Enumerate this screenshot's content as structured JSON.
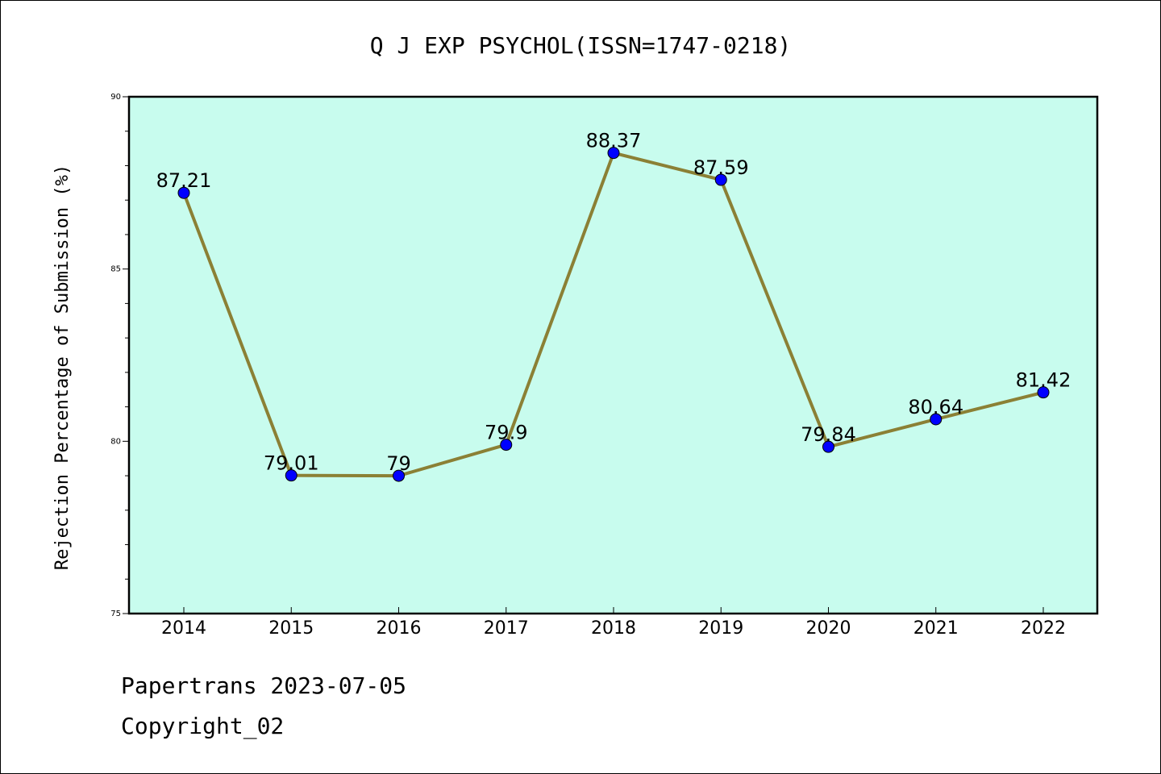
{
  "footer": {
    "line1": "Papertrans 2023-07-05",
    "line2": "Copyright_02"
  },
  "chart_data": {
    "type": "line",
    "title": "Q J EXP PSYCHOL(ISSN=1747-0218)",
    "xlabel": "",
    "ylabel": "Rejection Percentage of Submission (%)",
    "categories": [
      "2014",
      "2015",
      "2016",
      "2017",
      "2018",
      "2019",
      "2020",
      "2021",
      "2022"
    ],
    "series": [
      {
        "values": [
          87.21,
          79.01,
          79,
          79.9,
          88.37,
          87.59,
          79.84,
          80.64,
          81.42
        ],
        "labels": [
          "87.21",
          "79.01",
          "79",
          "79.9",
          "88.37",
          "87.59",
          "79.84",
          "80.64",
          "81.42"
        ]
      }
    ],
    "ylim": [
      75,
      90
    ],
    "yticks": [
      75,
      80,
      85,
      90
    ],
    "grid": false,
    "colors": {
      "plot_background": "#c8fcee",
      "line": "#8b8035",
      "marker": "#0000ff"
    }
  }
}
